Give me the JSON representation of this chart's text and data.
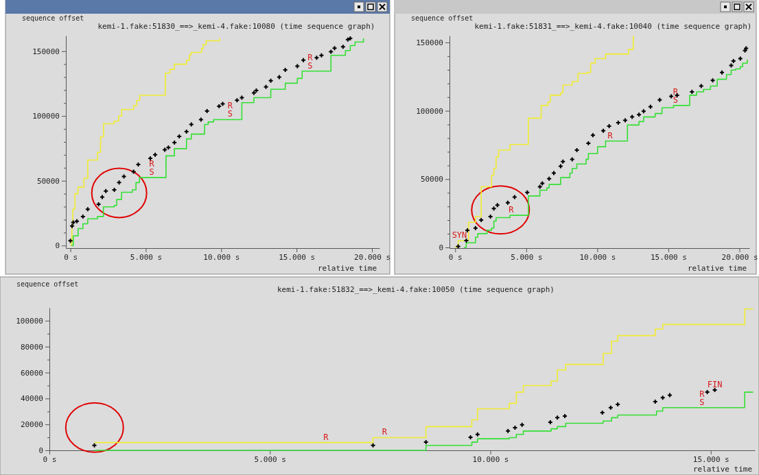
{
  "chart_data": [
    {
      "type": "step",
      "title": "kemi-1.fake:51830_==>_kemi-4.fake:10080 (time sequence graph)",
      "ylabel": "sequence offset",
      "xlabel": "relative time",
      "xlim": [
        -300,
        20500
      ],
      "ylim": [
        -2000,
        162000
      ],
      "xticks": [
        {
          "value": 0,
          "label": "0 s"
        },
        {
          "value": 5000,
          "label": "5.000 s"
        },
        {
          "value": 10000,
          "label": "10.000 s"
        },
        {
          "value": 15000,
          "label": "15.000 s"
        },
        {
          "value": 20000,
          "label": "20.000 s"
        }
      ],
      "yticks": [
        0,
        {
          "value": 10000,
          "label": null
        },
        {
          "value": 20000,
          "label": null
        },
        {
          "value": 30000,
          "label": null
        },
        {
          "value": 40000,
          "label": null
        },
        50000,
        {
          "value": 60000,
          "label": null
        },
        {
          "value": 70000,
          "label": null
        },
        {
          "value": 80000,
          "label": null
        },
        {
          "value": 90000,
          "label": null
        },
        100000,
        {
          "value": 110000,
          "label": null
        },
        {
          "value": 120000,
          "label": null
        },
        {
          "value": 130000,
          "label": null
        },
        {
          "value": 140000,
          "label": null
        },
        150000
      ],
      "series": [
        {
          "type": "step",
          "color": "#f0ec30",
          "x": [
            0,
            60,
            100,
            160,
            300,
            500,
            900,
            1150,
            1800,
            2000,
            2200,
            2900,
            3200,
            3400,
            4200,
            4400,
            4600,
            6300,
            6600,
            6900,
            7700,
            7900,
            8000,
            8700,
            8800,
            9000,
            9900
          ],
          "values": [
            0,
            2000,
            16000,
            28000,
            40000,
            45000,
            52000,
            66000,
            72000,
            84000,
            94000,
            96000,
            100000,
            105000,
            108000,
            112000,
            116000,
            133000,
            136000,
            140000,
            143000,
            147000,
            149000,
            152000,
            155000,
            158000,
            160000
          ]
        },
        {
          "type": "step",
          "color": "#33e033",
          "x": [
            60,
            190,
            510,
            830,
            1150,
            1790,
            2190,
            2910,
            3070,
            3390,
            4110,
            4350,
            4580,
            6340,
            6900,
            7700,
            8020,
            8900,
            9140,
            9500,
            11370,
            12170,
            13290,
            14250,
            15050,
            15370,
            17280,
            18240,
            18560,
            18880,
            19440
          ],
          "values": [
            0,
            7500,
            13100,
            16800,
            20600,
            22400,
            29900,
            30900,
            35500,
            41100,
            43000,
            48600,
            52400,
            69200,
            74800,
            82300,
            86000,
            93500,
            95400,
            97200,
            110300,
            114100,
            120600,
            125300,
            129000,
            134600,
            146800,
            150500,
            154300,
            157100,
            159900
          ]
        },
        {
          "type": "scatter",
          "marker": "cross",
          "color": "#000000",
          "x": [
            0,
            110,
            190,
            430,
            830,
            1150,
            1870,
            2110,
            2350,
            2910,
            3230,
            3550,
            4190,
            4500,
            5300,
            5620,
            6260,
            6500,
            6900,
            7220,
            7700,
            8020,
            8660,
            9060,
            9860,
            10100,
            11050,
            11370,
            12170,
            12330,
            12970,
            13290,
            13850,
            14250,
            15050,
            15450,
            16330,
            16650,
            17280,
            17520,
            18080,
            18400,
            18560
          ],
          "values": [
            3700,
            15000,
            17800,
            18700,
            22400,
            28000,
            31800,
            37400,
            42100,
            43000,
            48600,
            53300,
            57000,
            62600,
            67300,
            70100,
            73900,
            75700,
            79500,
            84200,
            87900,
            93500,
            97200,
            103800,
            107500,
            109400,
            112200,
            114100,
            117800,
            119700,
            122500,
            127200,
            130000,
            135600,
            138400,
            143100,
            144900,
            146800,
            149600,
            152400,
            153400,
            159000,
            159900
          ]
        }
      ],
      "annotations": [
        {
          "text": "S",
          "x": 5400,
          "y": 52400
        },
        {
          "text": "R",
          "x": 5400,
          "y": 52400
        },
        {
          "text": "S",
          "x": 10600,
          "y": 97200
        },
        {
          "text": "R",
          "x": 10600,
          "y": 97200
        },
        {
          "text": "S",
          "x": 15900,
          "y": 134600
        },
        {
          "text": "R",
          "x": 15900,
          "y": 134600
        }
      ]
    },
    {
      "type": "step",
      "title": "kemi-1.fake:51831_==>_kemi-4.fake:10040 (time sequence graph)",
      "ylabel": "sequence offset",
      "xlabel": "relative time",
      "xlim": [
        -400,
        20700
      ],
      "ylim": [
        -500,
        155000
      ],
      "xticks": [
        {
          "value": 0,
          "label": "0 s"
        },
        {
          "value": 5000,
          "label": "5.000 s"
        },
        {
          "value": 10000,
          "label": "10.000 s"
        },
        {
          "value": 15000,
          "label": "15.000 s"
        },
        {
          "value": 20000,
          "label": "20.000 s"
        }
      ],
      "yticks": [
        0,
        {
          "value": 10000,
          "label": null
        },
        {
          "value": 20000,
          "label": null
        },
        {
          "value": 30000,
          "label": null
        },
        {
          "value": 40000,
          "label": null
        },
        50000,
        {
          "value": 60000,
          "label": null
        },
        {
          "value": 70000,
          "label": null
        },
        {
          "value": 80000,
          "label": null
        },
        {
          "value": 90000,
          "label": null
        },
        100000,
        {
          "value": 110000,
          "label": null
        },
        {
          "value": 120000,
          "label": null
        },
        {
          "value": 130000,
          "label": null
        },
        {
          "value": 140000,
          "label": null
        },
        150000
      ],
      "series": [
        {
          "type": "step",
          "color": "#f0ec30",
          "x": [
            0,
            210,
            940,
            1430,
            1830,
            2560,
            2720,
            2880,
            3050,
            3860,
            5150,
            6050,
            6530,
            6690,
            7420,
            7580,
            8230,
            8640,
            9290,
            9530,
            9850,
            10580,
            12040,
            12200,
            12530
          ],
          "values": [
            0,
            5000,
            18400,
            22600,
            44400,
            52800,
            57800,
            66200,
            71200,
            75400,
            94600,
            103900,
            106400,
            111400,
            113100,
            118900,
            121400,
            127300,
            128100,
            134800,
            138200,
            141500,
            141500,
            144900,
            154900
          ]
        },
        {
          "type": "step",
          "color": "#33e033",
          "x": [
            620,
            780,
            1430,
            1590,
            2240,
            2560,
            2720,
            2880,
            3860,
            5150,
            5960,
            6450,
            6610,
            7420,
            8070,
            8230,
            8560,
            9210,
            9370,
            10020,
            10580,
            12120,
            12930,
            13260,
            14070,
            14550,
            15360,
            16500,
            16990,
            17470,
            17960,
            18440,
            19090,
            19420,
            19740,
            20060,
            20230,
            20550
          ],
          "values": [
            0,
            3400,
            7500,
            10100,
            12600,
            14200,
            19300,
            21800,
            23500,
            37700,
            41900,
            43600,
            46100,
            51100,
            54400,
            57800,
            61100,
            64500,
            68700,
            73700,
            77900,
            89600,
            92100,
            95500,
            98000,
            102200,
            103900,
            111400,
            113900,
            115600,
            118100,
            123100,
            126500,
            129800,
            130700,
            132300,
            134800,
            137400
          ]
        },
        {
          "type": "scatter",
          "marker": "cross",
          "color": "#000000",
          "x": [
            210,
            780,
            860,
            1430,
            1830,
            2480,
            2720,
            2970,
            3700,
            4180,
            5070,
            5960,
            6130,
            6610,
            6940,
            7420,
            7580,
            8230,
            8560,
            9370,
            9690,
            10420,
            10830,
            11470,
            11960,
            12450,
            12930,
            13260,
            13740,
            14390,
            15200,
            15610,
            16660,
            17310,
            18120,
            18770,
            19420,
            19580,
            20060,
            20390,
            20470
          ],
          "values": [
            800,
            5000,
            12600,
            14200,
            20100,
            22600,
            28500,
            31000,
            32700,
            36900,
            40200,
            44400,
            46900,
            50300,
            54400,
            59500,
            62800,
            64500,
            71200,
            76200,
            82100,
            85400,
            88800,
            91300,
            93000,
            95500,
            97200,
            99700,
            103000,
            108000,
            110600,
            111400,
            113900,
            118100,
            122300,
            128100,
            133200,
            136500,
            138200,
            144100,
            145700
          ]
        }
      ],
      "annotations": [
        {
          "text": "SYN",
          "x": 300,
          "y": 5000
        },
        {
          "text": "R",
          "x": 3940,
          "y": 23500
        },
        {
          "text": "R",
          "x": 10900,
          "y": 77900
        },
        {
          "text": "S",
          "x": 15500,
          "y": 103900
        },
        {
          "text": "R",
          "x": 15500,
          "y": 103900
        }
      ]
    },
    {
      "type": "step",
      "title": "kemi-1.fake:51832_==>_kemi-4.fake:10050 (time sequence graph)",
      "ylabel": "sequence offset",
      "xlabel": "relative time",
      "xlim": [
        0,
        16000
      ],
      "ylim": [
        0,
        110000
      ],
      "xticks": [
        {
          "value": 0,
          "label": "0 s"
        },
        {
          "value": 5000,
          "label": "5.000 s"
        },
        {
          "value": 10000,
          "label": "10.000 s"
        },
        {
          "value": 15000,
          "label": "15.000 s"
        }
      ],
      "yticks": [
        0,
        {
          "value": 10000,
          "label": null
        },
        20000,
        {
          "value": 30000,
          "label": null
        },
        40000,
        {
          "value": 50000,
          "label": null
        },
        60000,
        {
          "value": 70000,
          "label": null
        },
        80000,
        {
          "value": 90000,
          "label": null
        },
        100000
      ],
      "series": [
        {
          "type": "step",
          "color": "#f0ec30",
          "x": [
            1020,
            7340,
            8540,
            9580,
            9710,
            10430,
            10590,
            10750,
            11380,
            11520,
            11710,
            12560,
            12750,
            12890,
            13740,
            13910,
            15770,
            15960
          ],
          "values": [
            6000,
            9800,
            18300,
            23500,
            32000,
            36300,
            44900,
            50000,
            53400,
            62000,
            66300,
            74800,
            84200,
            88500,
            93600,
            97100,
            109100,
            109100
          ]
        },
        {
          "type": "step",
          "color": "#33e033",
          "x": [
            1020,
            8540,
            9580,
            9710,
            10430,
            10590,
            10750,
            11380,
            11520,
            11710,
            12560,
            12750,
            12890,
            13770,
            13910,
            15770,
            15960
          ],
          "values": [
            0,
            3800,
            6300,
            8900,
            9800,
            12300,
            14900,
            16600,
            18300,
            20900,
            22600,
            25200,
            27200,
            30300,
            32900,
            44900,
            44900
          ]
        },
        {
          "type": "scatter",
          "marker": "cross",
          "color": "#000000",
          "x": [
            1020,
            7340,
            8540,
            9550,
            9710,
            10400,
            10560,
            10720,
            11360,
            11520,
            11690,
            12540,
            12730,
            12890,
            13740,
            13910,
            14070,
            14920,
            15090
          ],
          "values": [
            3800,
            3800,
            6300,
            10100,
            12300,
            14900,
            17500,
            19700,
            21700,
            25200,
            26500,
            29100,
            32900,
            35400,
            37500,
            40600,
            42600,
            44900,
            46600
          ]
        }
      ],
      "annotations": [
        {
          "text": "R",
          "x": 6270,
          "y": 6000
        },
        {
          "text": "R",
          "x": 7600,
          "y": 9800
        },
        {
          "text": "S",
          "x": 14800,
          "y": 32900
        },
        {
          "text": "R",
          "x": 14800,
          "y": 32900
        },
        {
          "text": "FIN",
          "x": 15090,
          "y": 46600
        }
      ]
    }
  ]
}
